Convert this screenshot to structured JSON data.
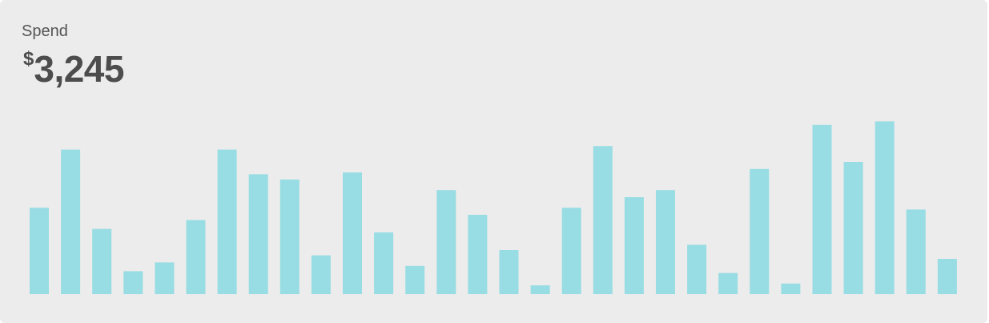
{
  "card": {
    "label": "Spend",
    "currency": "$",
    "value": "3,245"
  },
  "chart_data": {
    "type": "bar",
    "color": "#98dde3",
    "values": [
      49,
      82,
      37,
      13,
      18,
      42,
      82,
      68,
      65,
      22,
      69,
      35,
      16,
      59,
      45,
      25,
      5,
      49,
      84,
      55,
      59,
      28,
      12,
      71,
      6,
      96,
      75,
      98,
      48,
      20
    ],
    "ylim": [
      0,
      100
    ],
    "grid": false,
    "legend": false
  }
}
